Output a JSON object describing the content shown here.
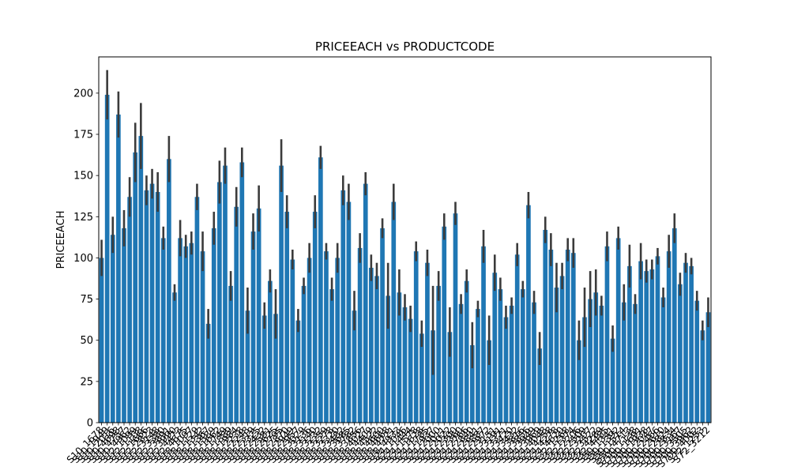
{
  "chart_data": {
    "type": "bar",
    "title": "PRICEEACH vs PRODUCTCODE",
    "xlabel": "",
    "ylabel": "PRICEEACH",
    "ylim": [
      0,
      222
    ],
    "yticks": [
      0,
      25,
      50,
      75,
      100,
      125,
      150,
      175,
      200
    ],
    "grid": false,
    "bar_color": "#1f77b4",
    "errorbar_color": "#3b3b3b",
    "categories": [
      "S10_1678",
      "S10_1949",
      "S10_2016",
      "S10_4698",
      "S10_4757",
      "S10_4962",
      "S12_1099",
      "S12_1108",
      "S12_1666",
      "S12_2823",
      "S12_3148",
      "S12_3380",
      "S12_3891",
      "S12_3990",
      "S12_4473",
      "S12_4675",
      "S18_1097",
      "S18_1129",
      "S18_1342",
      "S18_1367",
      "S18_1589",
      "S18_1662",
      "S18_1749",
      "S18_1889",
      "S18_1984",
      "S18_2238",
      "S18_2248",
      "S18_2319",
      "S18_2325",
      "S18_2432",
      "S18_2581",
      "S18_2625",
      "S18_2795",
      "S18_2870",
      "S18_2949",
      "S18_2957",
      "S18_3029",
      "S18_3136",
      "S18_3140",
      "S18_3232",
      "S18_3259",
      "S18_3278",
      "S18_3320",
      "S18_3482",
      "S18_3685",
      "S18_3782",
      "S18_3856",
      "S18_4027",
      "S18_4409",
      "S18_4522",
      "S18_4600",
      "S18_4668",
      "S18_4721",
      "S18_4933",
      "S24_1046",
      "S24_1444",
      "S24_1578",
      "S24_1628",
      "S24_1785",
      "S24_1937",
      "S24_2000",
      "S24_2011",
      "S24_2022",
      "S24_2300",
      "S24_2360",
      "S24_2766",
      "S24_2840",
      "S24_2841",
      "S24_2887",
      "S24_2972",
      "S24_3151",
      "S24_3191",
      "S24_3371",
      "S24_3420",
      "S24_3432",
      "S24_3816",
      "S24_3856",
      "S24_3949",
      "S24_3969",
      "S24_4048",
      "S24_4258",
      "S24_4278",
      "S24_4620",
      "S32_1268",
      "S32_1374",
      "S32_2206",
      "S32_2509",
      "S32_3207",
      "S32_3522",
      "S32_4289",
      "S32_4485",
      "S50_1341",
      "S50_1392",
      "S50_1514",
      "S50_4713",
      "S700_1138",
      "S700_1691",
      "S700_1938",
      "S700_2047",
      "S700_2466",
      "S700_2610",
      "S700_2824",
      "S700_2834",
      "S700_3167",
      "S700_3505",
      "S700_3962",
      "S700_4002",
      "S72_1253",
      "S72_3212"
    ],
    "values": [
      100,
      199,
      114,
      187,
      118,
      137,
      164,
      174,
      141,
      145,
      140,
      112,
      160,
      79,
      112,
      107,
      109,
      137,
      104,
      60,
      118,
      146,
      156,
      83,
      131,
      158,
      68,
      116,
      130,
      65,
      86,
      66,
      156,
      128,
      99,
      62,
      83,
      100,
      128,
      161,
      104,
      81,
      100,
      141,
      134,
      68,
      106,
      145,
      94,
      89,
      118,
      77,
      134,
      79,
      70,
      63,
      104,
      54,
      97,
      56,
      83,
      119,
      55,
      127,
      72,
      86,
      47,
      69,
      107,
      50,
      91,
      81,
      64,
      71,
      102,
      81,
      132,
      73,
      45,
      117,
      105,
      82,
      89,
      105,
      103,
      50,
      64,
      75,
      79,
      71,
      107,
      51,
      112,
      73,
      95,
      72,
      98,
      92,
      93,
      101,
      76,
      104,
      118,
      84,
      97,
      95,
      74,
      56,
      67
    ],
    "errors": [
      11,
      15,
      11,
      14,
      11,
      12,
      18,
      20,
      9,
      9,
      12,
      7,
      14,
      5,
      11,
      7,
      7,
      8,
      12,
      9,
      10,
      13,
      11,
      9,
      12,
      9,
      14,
      11,
      14,
      8,
      7,
      15,
      16,
      10,
      6,
      7,
      5,
      9,
      10,
      7,
      5,
      7,
      9,
      9,
      11,
      12,
      9,
      7,
      8,
      8,
      6,
      20,
      11,
      14,
      8,
      8,
      6,
      8,
      8,
      27,
      9,
      8,
      15,
      7,
      6,
      7,
      14,
      5,
      10,
      15,
      11,
      7,
      7,
      5,
      7,
      5,
      8,
      7,
      10,
      8,
      10,
      15,
      8,
      7,
      9,
      12,
      18,
      17,
      14,
      6,
      9,
      8,
      7,
      11,
      13,
      6,
      11,
      7,
      6,
      5,
      6,
      10,
      9,
      7,
      6,
      5,
      6,
      6,
      9
    ]
  }
}
